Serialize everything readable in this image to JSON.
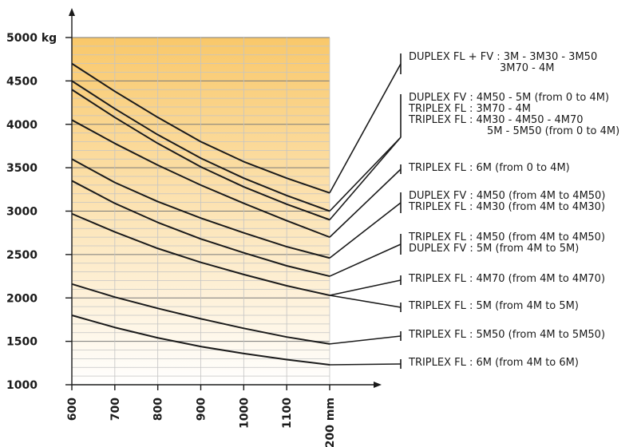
{
  "chart_data": {
    "type": "line",
    "x": [
      600,
      700,
      800,
      900,
      1000,
      1100,
      1200
    ],
    "x_tick_labels": [
      "600",
      "700",
      "800",
      "900",
      "1000",
      "1100",
      "1200 mm"
    ],
    "y_tick_labels": [
      "1000",
      "1500",
      "2000",
      "2500",
      "3000",
      "3500",
      "4000",
      "4500",
      "5000 kg"
    ],
    "xlim": [
      600,
      1200
    ],
    "ylim": [
      1000,
      5000
    ],
    "grid": true,
    "gradient": {
      "top": "#f9c86a",
      "bottom": "#ffffff"
    },
    "line_color": "#1a1a1a",
    "series": [
      {
        "values": [
          4700,
          4380,
          4080,
          3800,
          3570,
          3380,
          3210
        ]
      },
      {
        "values": [
          4500,
          4180,
          3880,
          3610,
          3380,
          3180,
          3000
        ]
      },
      {
        "values": [
          4400,
          4080,
          3780,
          3510,
          3280,
          3080,
          2900
        ]
      },
      {
        "values": [
          4050,
          3780,
          3530,
          3300,
          3090,
          2890,
          2700
        ]
      },
      {
        "values": [
          3600,
          3330,
          3110,
          2920,
          2750,
          2590,
          2460
        ]
      },
      {
        "values": [
          3350,
          3090,
          2870,
          2680,
          2520,
          2370,
          2250
        ]
      },
      {
        "values": [
          2970,
          2760,
          2570,
          2410,
          2270,
          2140,
          2030
        ]
      },
      {
        "values": [
          2160,
          2010,
          1880,
          1760,
          1650,
          1550,
          1470
        ]
      },
      {
        "values": [
          1800,
          1660,
          1540,
          1440,
          1360,
          1290,
          1230
        ]
      }
    ],
    "annotations": [
      {
        "lines": [
          "DUPLEX FL + FV : 3M - 3M30 - 3M50",
          "3M70 - 4M"
        ],
        "series_index": 0
      },
      {
        "lines": [
          "DUPLEX FV : 4M50 - 5M (from 0 to 4M)",
          "TRIPLEX FL : 3M70 - 4M",
          "TRIPLEX FL : 4M30 - 4M50 - 4M70",
          "5M - 5M50 (from 0 to 4M)"
        ],
        "series_index": [
          1,
          2
        ]
      },
      {
        "lines": [
          "TRIPLEX FL : 6M (from 0 to 4M)"
        ],
        "series_index": 3
      },
      {
        "lines": [
          "DUPLEX FV : 4M50 (from 4M to 4M50)",
          "TRIPLEX FL : 4M30 (from 4M to 4M30)"
        ],
        "series_index": 4
      },
      {
        "lines": [
          "TRIPLEX FL : 4M50 (from 4M to 4M50)",
          "DUPLEX FV : 5M (from 4M to 5M)"
        ],
        "series_index": 5
      },
      {
        "lines": [
          "TRIPLEX FL : 4M70 (from 4M to 4M70)"
        ],
        "series_index": 6
      },
      {
        "lines": [
          "TRIPLEX FL : 5M (from 4M to 5M)"
        ],
        "series_index": 6
      },
      {
        "lines": [
          "TRIPLEX FL : 5M50 (from 4M to 5M50)"
        ],
        "series_index": 7
      },
      {
        "lines": [
          "TRIPLEX FL : 6M (from 4M to 6M)"
        ],
        "series_index": 8
      }
    ]
  }
}
